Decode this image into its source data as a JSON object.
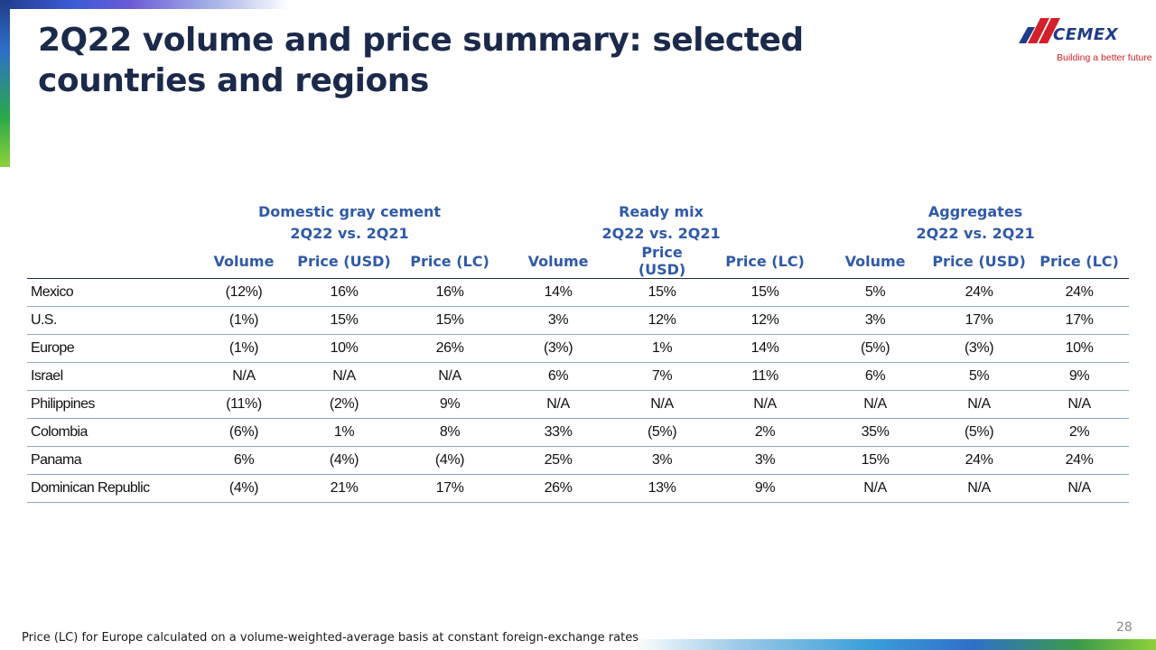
{
  "slide": {
    "title": "2Q22 volume and price summary: selected countries and regions",
    "footnote": "Price (LC) for Europe calculated on a volume-weighted-average basis at constant foreign-exchange rates",
    "page_number": "28"
  },
  "logo": {
    "brand": "CEMEX",
    "tagline": "Building a better future",
    "icon": "cemex-logo-icon"
  },
  "colors": {
    "title": "#1b2a4a",
    "header": "#2f5aa8",
    "brand_blue": "#1f3c88",
    "brand_red": "#d3202a",
    "row_rule": "#8fa6c9"
  },
  "table": {
    "groups": [
      {
        "name": "Domestic gray cement",
        "period": "2Q22 vs. 2Q21"
      },
      {
        "name": "Ready mix",
        "period": "2Q22 vs. 2Q21"
      },
      {
        "name": "Aggregates",
        "period": "2Q22 vs. 2Q21"
      }
    ],
    "columns": [
      "Volume",
      "Price (USD)",
      "Price (LC)",
      "Volume",
      "Price (USD)",
      "Price (LC)",
      "Volume",
      "Price (USD)",
      "Price (LC)"
    ],
    "rows": [
      {
        "country": "Mexico",
        "values": [
          "(12%)",
          "16%",
          "16%",
          "14%",
          "15%",
          "15%",
          "5%",
          "24%",
          "24%"
        ]
      },
      {
        "country": "U.S.",
        "values": [
          "(1%)",
          "15%",
          "15%",
          "3%",
          "12%",
          "12%",
          "3%",
          "17%",
          "17%"
        ]
      },
      {
        "country": "Europe",
        "values": [
          "(1%)",
          "10%",
          "26%",
          "(3%)",
          "1%",
          "14%",
          "(5%)",
          "(3%)",
          "10%"
        ]
      },
      {
        "country": "Israel",
        "values": [
          "N/A",
          "N/A",
          "N/A",
          "6%",
          "7%",
          "11%",
          "6%",
          "5%",
          "9%"
        ]
      },
      {
        "country": "Philippines",
        "values": [
          "(11%)",
          "(2%)",
          "9%",
          "N/A",
          "N/A",
          "N/A",
          "N/A",
          "N/A",
          "N/A"
        ]
      },
      {
        "country": "Colombia",
        "values": [
          "(6%)",
          "1%",
          "8%",
          "33%",
          "(5%)",
          "2%",
          "35%",
          "(5%)",
          "2%"
        ]
      },
      {
        "country": "Panama",
        "values": [
          "6%",
          "(4%)",
          "(4%)",
          "25%",
          "3%",
          "3%",
          "15%",
          "24%",
          "24%"
        ]
      },
      {
        "country": "Dominican Republic",
        "values": [
          "(4%)",
          "21%",
          "17%",
          "26%",
          "13%",
          "9%",
          "N/A",
          "N/A",
          "N/A"
        ]
      }
    ]
  }
}
